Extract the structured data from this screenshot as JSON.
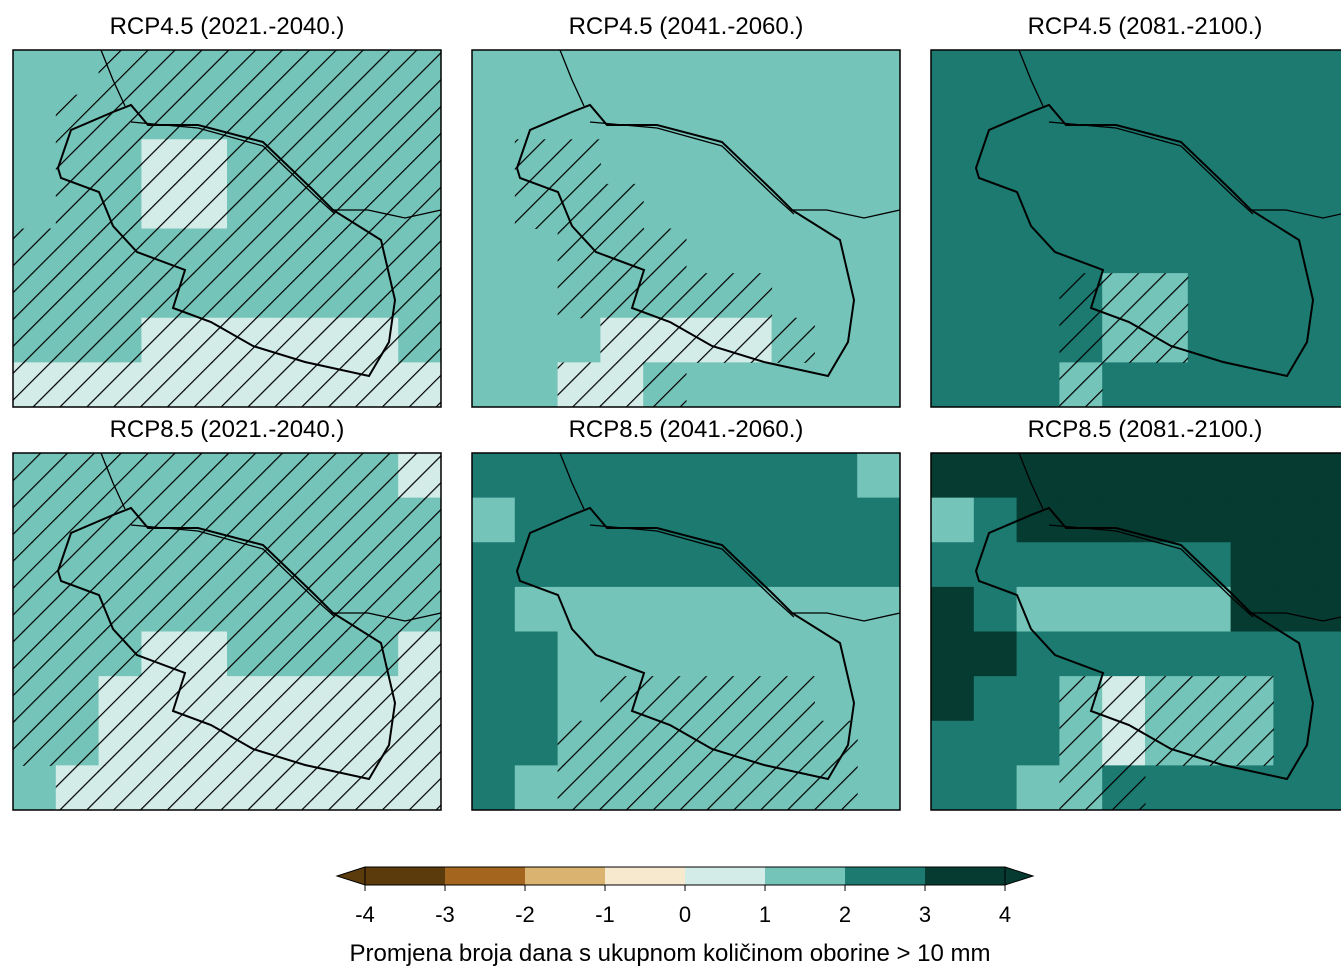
{
  "panels": [
    {
      "title": "RCP4.5 (2021.-2040.)",
      "cells": [
        [
          1.5,
          1.5,
          1.5,
          1.5,
          1.5,
          1.5,
          1.5,
          1.5,
          1.5,
          1.5
        ],
        [
          1.5,
          1.5,
          1.5,
          1.5,
          1.5,
          1.5,
          1.5,
          1.5,
          1.5,
          1.5
        ],
        [
          1.5,
          1.5,
          1.5,
          0.5,
          0.5,
          1.5,
          1.5,
          1.5,
          1.5,
          1.5
        ],
        [
          1.5,
          1.5,
          1.5,
          0.5,
          0.5,
          1.5,
          1.5,
          1.5,
          1.5,
          1.5
        ],
        [
          1.5,
          1.5,
          1.5,
          1.5,
          1.5,
          1.5,
          1.5,
          1.5,
          1.5,
          1.5
        ],
        [
          1.5,
          1.5,
          1.5,
          1.5,
          1.5,
          1.5,
          1.5,
          1.5,
          1.5,
          1.5
        ],
        [
          1.5,
          1.5,
          1.5,
          0.5,
          0.5,
          0.5,
          0.5,
          0.5,
          0.5,
          1.5
        ],
        [
          0.5,
          0.5,
          0.5,
          0.5,
          0.5,
          0.5,
          0.5,
          0.5,
          0.5,
          0.5
        ]
      ],
      "hatch": [
        [
          false,
          false,
          true,
          true,
          true,
          true,
          true,
          true,
          true,
          true
        ],
        [
          false,
          true,
          true,
          true,
          true,
          true,
          true,
          true,
          true,
          true
        ],
        [
          false,
          true,
          true,
          true,
          true,
          true,
          true,
          true,
          true,
          true
        ],
        [
          false,
          true,
          true,
          true,
          true,
          true,
          true,
          true,
          true,
          true
        ],
        [
          true,
          true,
          true,
          true,
          true,
          true,
          true,
          true,
          true,
          true
        ],
        [
          true,
          true,
          true,
          true,
          true,
          true,
          true,
          true,
          true,
          true
        ],
        [
          true,
          true,
          true,
          true,
          true,
          true,
          true,
          true,
          true,
          true
        ],
        [
          true,
          true,
          true,
          true,
          true,
          true,
          true,
          true,
          true,
          true
        ]
      ]
    },
    {
      "title": "RCP4.5 (2041.-2060.)",
      "cells": [
        [
          1.5,
          1.5,
          1.5,
          1.5,
          1.5,
          1.5,
          1.5,
          1.5,
          1.5,
          1.5
        ],
        [
          1.5,
          1.5,
          1.5,
          1.5,
          1.5,
          1.5,
          1.5,
          1.5,
          1.5,
          1.5
        ],
        [
          1.5,
          1.5,
          1.5,
          1.5,
          1.5,
          1.5,
          1.5,
          1.5,
          1.5,
          1.5
        ],
        [
          1.5,
          1.5,
          1.5,
          1.5,
          1.5,
          1.5,
          1.5,
          1.5,
          1.5,
          1.5
        ],
        [
          1.5,
          1.5,
          1.5,
          1.5,
          1.5,
          1.5,
          1.5,
          1.5,
          1.5,
          1.5
        ],
        [
          1.5,
          1.5,
          1.5,
          1.5,
          1.5,
          1.5,
          1.5,
          1.5,
          1.5,
          1.5
        ],
        [
          1.5,
          1.5,
          1.5,
          0.5,
          0.5,
          0.5,
          0.5,
          1.5,
          1.5,
          1.5
        ],
        [
          1.5,
          1.5,
          0.5,
          0.5,
          1.5,
          1.5,
          1.5,
          1.5,
          1.5,
          1.5
        ]
      ],
      "hatch": [
        [
          false,
          false,
          false,
          false,
          false,
          false,
          false,
          false,
          false,
          false
        ],
        [
          false,
          false,
          false,
          false,
          false,
          false,
          false,
          false,
          false,
          false
        ],
        [
          false,
          true,
          true,
          false,
          false,
          false,
          false,
          false,
          false,
          false
        ],
        [
          false,
          true,
          true,
          true,
          false,
          false,
          false,
          false,
          false,
          false
        ],
        [
          false,
          false,
          true,
          true,
          true,
          false,
          false,
          false,
          false,
          false
        ],
        [
          false,
          false,
          true,
          true,
          true,
          true,
          true,
          false,
          false,
          false
        ],
        [
          false,
          false,
          false,
          true,
          true,
          true,
          true,
          true,
          false,
          false
        ],
        [
          false,
          false,
          true,
          true,
          true,
          false,
          false,
          false,
          false,
          false
        ]
      ]
    },
    {
      "title": "RCP4.5 (2081.-2100.)",
      "cells": [
        [
          2.5,
          2.5,
          2.5,
          2.5,
          2.5,
          2.5,
          2.5,
          2.5,
          2.5,
          2.5
        ],
        [
          2.5,
          2.5,
          2.5,
          2.5,
          2.5,
          2.5,
          2.5,
          2.5,
          2.5,
          2.5
        ],
        [
          2.5,
          2.5,
          2.5,
          2.5,
          2.5,
          2.5,
          2.5,
          2.5,
          2.5,
          2.5
        ],
        [
          2.5,
          2.5,
          2.5,
          2.5,
          2.5,
          2.5,
          2.5,
          2.5,
          2.5,
          2.5
        ],
        [
          2.5,
          2.5,
          2.5,
          2.5,
          2.5,
          2.5,
          2.5,
          2.5,
          2.5,
          2.5
        ],
        [
          2.5,
          2.5,
          2.5,
          2.5,
          1.5,
          1.5,
          2.5,
          2.5,
          2.5,
          2.5
        ],
        [
          2.5,
          2.5,
          2.5,
          2.5,
          1.5,
          1.5,
          2.5,
          2.5,
          2.5,
          2.5
        ],
        [
          2.5,
          2.5,
          2.5,
          1.5,
          2.5,
          2.5,
          2.5,
          2.5,
          2.5,
          2.5
        ]
      ],
      "hatch": [
        [
          false,
          false,
          false,
          false,
          false,
          false,
          false,
          false,
          false,
          false
        ],
        [
          false,
          false,
          false,
          false,
          false,
          false,
          false,
          false,
          false,
          false
        ],
        [
          false,
          false,
          false,
          false,
          false,
          false,
          false,
          false,
          false,
          false
        ],
        [
          false,
          false,
          false,
          false,
          false,
          false,
          false,
          false,
          false,
          false
        ],
        [
          false,
          false,
          false,
          false,
          false,
          false,
          false,
          false,
          false,
          false
        ],
        [
          false,
          false,
          false,
          true,
          true,
          true,
          false,
          false,
          false,
          false
        ],
        [
          false,
          false,
          false,
          true,
          true,
          true,
          false,
          false,
          false,
          false
        ],
        [
          false,
          false,
          false,
          true,
          false,
          false,
          false,
          false,
          false,
          false
        ]
      ]
    },
    {
      "title": "RCP8.5 (2021.-2040.)",
      "cells": [
        [
          1.5,
          1.5,
          1.5,
          1.5,
          1.5,
          1.5,
          1.5,
          1.5,
          1.5,
          0.5
        ],
        [
          1.5,
          1.5,
          1.5,
          1.5,
          1.5,
          1.5,
          1.5,
          1.5,
          1.5,
          1.5
        ],
        [
          1.5,
          1.5,
          1.5,
          1.5,
          1.5,
          1.5,
          1.5,
          1.5,
          1.5,
          1.5
        ],
        [
          1.5,
          1.5,
          1.5,
          1.5,
          1.5,
          1.5,
          1.5,
          1.5,
          1.5,
          1.5
        ],
        [
          1.5,
          1.5,
          1.5,
          0.5,
          0.5,
          1.5,
          1.5,
          1.5,
          1.5,
          0.5
        ],
        [
          1.5,
          1.5,
          0.5,
          0.5,
          0.5,
          0.5,
          0.5,
          0.5,
          0.5,
          0.5
        ],
        [
          1.5,
          1.5,
          0.5,
          0.5,
          0.5,
          0.5,
          0.5,
          0.5,
          0.5,
          0.5
        ],
        [
          1.5,
          0.5,
          0.5,
          0.5,
          0.5,
          0.5,
          0.5,
          0.5,
          0.5,
          0.5
        ]
      ],
      "hatch": [
        [
          true,
          true,
          true,
          true,
          true,
          true,
          true,
          true,
          true,
          true
        ],
        [
          true,
          true,
          true,
          true,
          true,
          true,
          true,
          true,
          true,
          true
        ],
        [
          true,
          true,
          true,
          true,
          true,
          true,
          true,
          true,
          true,
          true
        ],
        [
          true,
          true,
          true,
          true,
          true,
          true,
          true,
          true,
          true,
          true
        ],
        [
          true,
          true,
          true,
          true,
          true,
          true,
          true,
          true,
          true,
          true
        ],
        [
          true,
          true,
          true,
          true,
          true,
          true,
          true,
          true,
          true,
          true
        ],
        [
          true,
          true,
          true,
          true,
          true,
          true,
          true,
          true,
          true,
          true
        ],
        [
          false,
          true,
          true,
          true,
          true,
          true,
          true,
          true,
          true,
          true
        ]
      ]
    },
    {
      "title": "RCP8.5 (2041.-2060.)",
      "cells": [
        [
          2.5,
          2.5,
          2.5,
          2.5,
          2.5,
          2.5,
          2.5,
          2.5,
          2.5,
          1.5
        ],
        [
          1.5,
          2.5,
          2.5,
          2.5,
          2.5,
          2.5,
          2.5,
          2.5,
          2.5,
          2.5
        ],
        [
          2.5,
          2.5,
          2.5,
          2.5,
          2.5,
          2.5,
          2.5,
          2.5,
          2.5,
          2.5
        ],
        [
          2.5,
          1.5,
          1.5,
          1.5,
          1.5,
          1.5,
          1.5,
          1.5,
          1.5,
          1.5
        ],
        [
          2.5,
          2.5,
          1.5,
          1.5,
          1.5,
          1.5,
          1.5,
          1.5,
          1.5,
          1.5
        ],
        [
          2.5,
          2.5,
          1.5,
          1.5,
          1.5,
          1.5,
          1.5,
          1.5,
          1.5,
          1.5
        ],
        [
          2.5,
          2.5,
          1.5,
          1.5,
          1.5,
          1.5,
          1.5,
          1.5,
          1.5,
          1.5
        ],
        [
          2.5,
          1.5,
          1.5,
          1.5,
          1.5,
          1.5,
          1.5,
          1.5,
          1.5,
          1.5
        ]
      ],
      "hatch": [
        [
          false,
          false,
          false,
          false,
          false,
          false,
          false,
          false,
          false,
          false
        ],
        [
          false,
          false,
          false,
          false,
          false,
          false,
          false,
          false,
          false,
          false
        ],
        [
          false,
          false,
          false,
          false,
          false,
          false,
          false,
          false,
          false,
          false
        ],
        [
          false,
          false,
          false,
          false,
          false,
          false,
          false,
          false,
          false,
          false
        ],
        [
          false,
          false,
          false,
          false,
          false,
          false,
          false,
          false,
          false,
          false
        ],
        [
          false,
          false,
          false,
          true,
          true,
          true,
          true,
          true,
          false,
          false
        ],
        [
          false,
          false,
          true,
          true,
          true,
          true,
          true,
          true,
          true,
          false
        ],
        [
          false,
          false,
          true,
          true,
          true,
          true,
          true,
          true,
          true,
          false
        ]
      ]
    },
    {
      "title": "RCP8.5 (2081.-2100.)",
      "cells": [
        [
          3.5,
          3.5,
          3.5,
          3.5,
          3.5,
          3.5,
          3.5,
          3.5,
          3.5,
          3.5
        ],
        [
          1.5,
          2.5,
          3.5,
          3.5,
          3.5,
          3.5,
          3.5,
          3.5,
          3.5,
          3.5
        ],
        [
          2.5,
          2.5,
          2.5,
          2.5,
          2.5,
          2.5,
          2.5,
          3.5,
          3.5,
          3.5
        ],
        [
          3.5,
          2.5,
          1.5,
          1.5,
          1.5,
          1.5,
          1.5,
          3.5,
          3.5,
          3.5
        ],
        [
          3.5,
          3.5,
          2.5,
          2.5,
          2.5,
          2.5,
          2.5,
          2.5,
          2.5,
          2.5
        ],
        [
          3.5,
          2.5,
          2.5,
          1.5,
          0.5,
          1.5,
          1.5,
          1.5,
          2.5,
          2.5
        ],
        [
          2.5,
          2.5,
          2.5,
          1.5,
          0.5,
          1.5,
          1.5,
          1.5,
          2.5,
          2.5
        ],
        [
          2.5,
          2.5,
          1.5,
          1.5,
          2.5,
          2.5,
          2.5,
          2.5,
          2.5,
          2.5
        ]
      ],
      "hatch": [
        [
          false,
          false,
          false,
          false,
          false,
          false,
          false,
          false,
          false,
          false
        ],
        [
          false,
          false,
          false,
          false,
          false,
          false,
          false,
          false,
          false,
          false
        ],
        [
          false,
          false,
          false,
          false,
          false,
          false,
          false,
          false,
          false,
          false
        ],
        [
          false,
          false,
          false,
          false,
          false,
          false,
          false,
          false,
          false,
          false
        ],
        [
          false,
          false,
          false,
          false,
          false,
          false,
          false,
          false,
          false,
          false
        ],
        [
          false,
          false,
          false,
          true,
          true,
          true,
          true,
          true,
          false,
          false
        ],
        [
          false,
          false,
          false,
          true,
          true,
          true,
          true,
          true,
          false,
          false
        ],
        [
          false,
          false,
          false,
          true,
          true,
          false,
          false,
          false,
          false,
          false
        ]
      ]
    }
  ],
  "colorbar": {
    "ticks": [
      -4,
      -3,
      -2,
      -1,
      0,
      1,
      2,
      3,
      4
    ],
    "colors": [
      "#5b3a0c",
      "#a4651e",
      "#dab370",
      "#f6e9cd",
      "#d3ece8",
      "#75c4b9",
      "#1c7a70",
      "#053b31"
    ],
    "extend": "both",
    "label": "Promjena broja dana s ukupnom količinom oborine > 10 mm"
  }
}
